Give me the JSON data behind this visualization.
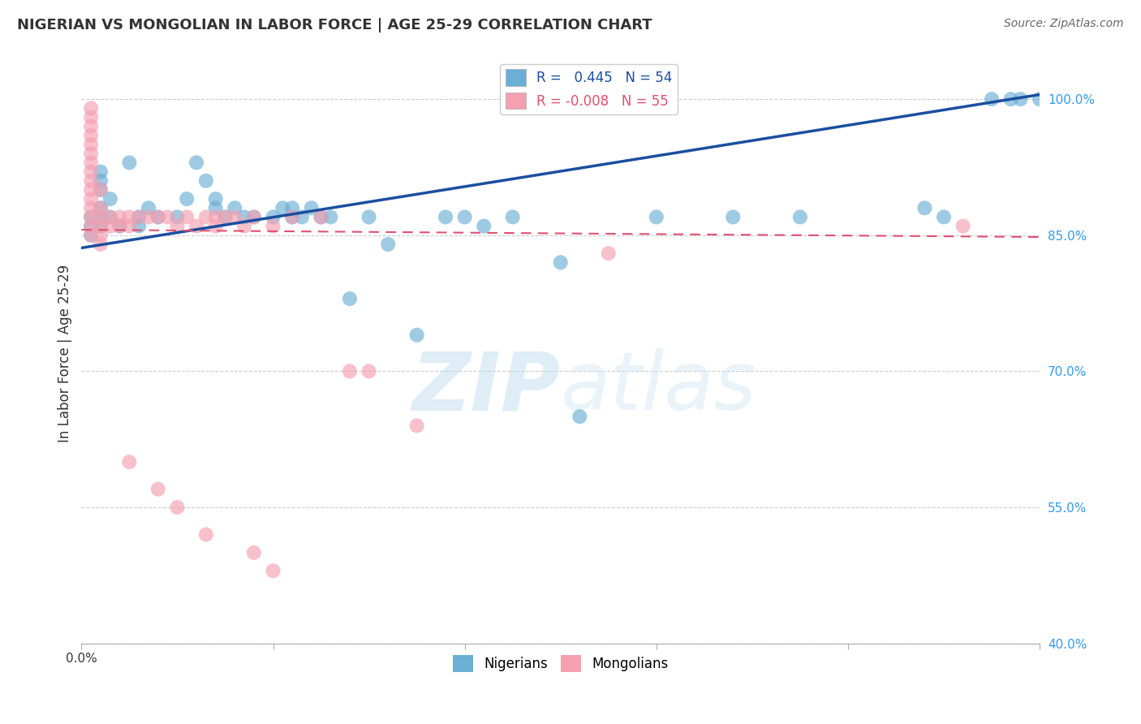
{
  "title": "NIGERIAN VS MONGOLIAN IN LABOR FORCE | AGE 25-29 CORRELATION CHART",
  "source": "Source: ZipAtlas.com",
  "ylabel": "In Labor Force | Age 25-29",
  "xlabel": "",
  "xlim": [
    0.0,
    1.0
  ],
  "ylim": [
    0.4,
    1.04
  ],
  "yticks": [
    0.4,
    0.55,
    0.7,
    0.85,
    1.0
  ],
  "ytick_labels": [
    "40.0%",
    "55.0%",
    "70.0%",
    "85.0%",
    "100.0%"
  ],
  "xticks": [
    0.0,
    0.2,
    0.4,
    0.6,
    0.8,
    1.0
  ],
  "xtick_labels": [
    "0.0%",
    "",
    "",
    "",
    "",
    ""
  ],
  "blue_label": "Nigerians",
  "pink_label": "Mongolians",
  "blue_R": "0.445",
  "blue_N": "54",
  "pink_R": "-0.008",
  "pink_N": "55",
  "blue_color": "#6baed6",
  "pink_color": "#f4a0b0",
  "blue_line_color": "#1a4fa0",
  "pink_line_color": "#e05070",
  "grid_color": "#cccccc",
  "watermark_zip": "ZIP",
  "watermark_atlas": "atlas",
  "blue_scatter_x": [
    0.01,
    0.01,
    0.01,
    0.02,
    0.02,
    0.02,
    0.02,
    0.02,
    0.02,
    0.03,
    0.03,
    0.04,
    0.05,
    0.06,
    0.06,
    0.07,
    0.08,
    0.1,
    0.11,
    0.12,
    0.13,
    0.14,
    0.14,
    0.15,
    0.16,
    0.17,
    0.18,
    0.2,
    0.21,
    0.22,
    0.22,
    0.23,
    0.24,
    0.25,
    0.26,
    0.28,
    0.3,
    0.32,
    0.35,
    0.38,
    0.4,
    0.42,
    0.45,
    0.5,
    0.52,
    0.6,
    0.68,
    0.75,
    0.88,
    0.9,
    0.95,
    0.97,
    0.98,
    1.0
  ],
  "blue_scatter_y": [
    0.87,
    0.86,
    0.85,
    0.92,
    0.91,
    0.9,
    0.88,
    0.87,
    0.86,
    0.89,
    0.87,
    0.86,
    0.93,
    0.87,
    0.86,
    0.88,
    0.87,
    0.87,
    0.89,
    0.93,
    0.91,
    0.89,
    0.88,
    0.87,
    0.88,
    0.87,
    0.87,
    0.87,
    0.88,
    0.88,
    0.87,
    0.87,
    0.88,
    0.87,
    0.87,
    0.78,
    0.87,
    0.84,
    0.74,
    0.87,
    0.87,
    0.86,
    0.87,
    0.82,
    0.65,
    0.87,
    0.87,
    0.87,
    0.88,
    0.87,
    1.0,
    1.0,
    1.0,
    1.0
  ],
  "pink_scatter_x": [
    0.01,
    0.01,
    0.01,
    0.01,
    0.01,
    0.01,
    0.01,
    0.01,
    0.01,
    0.01,
    0.01,
    0.01,
    0.01,
    0.01,
    0.01,
    0.02,
    0.02,
    0.02,
    0.02,
    0.02,
    0.02,
    0.03,
    0.03,
    0.04,
    0.04,
    0.05,
    0.05,
    0.06,
    0.07,
    0.08,
    0.09,
    0.1,
    0.11,
    0.12,
    0.13,
    0.14,
    0.14,
    0.15,
    0.16,
    0.17,
    0.18,
    0.2,
    0.22,
    0.25,
    0.28,
    0.3,
    0.35,
    0.55,
    0.92,
    0.05,
    0.08,
    0.1,
    0.13,
    0.18,
    0.2
  ],
  "pink_scatter_y": [
    0.99,
    0.98,
    0.97,
    0.96,
    0.95,
    0.94,
    0.93,
    0.92,
    0.91,
    0.9,
    0.89,
    0.88,
    0.87,
    0.86,
    0.85,
    0.9,
    0.88,
    0.87,
    0.86,
    0.85,
    0.84,
    0.87,
    0.86,
    0.87,
    0.86,
    0.87,
    0.86,
    0.87,
    0.87,
    0.87,
    0.87,
    0.86,
    0.87,
    0.86,
    0.87,
    0.87,
    0.86,
    0.87,
    0.87,
    0.86,
    0.87,
    0.86,
    0.87,
    0.87,
    0.7,
    0.7,
    0.64,
    0.83,
    0.86,
    0.6,
    0.57,
    0.55,
    0.52,
    0.5,
    0.48
  ],
  "blue_line_x": [
    0.0,
    1.0
  ],
  "blue_line_y_start": 0.836,
  "blue_line_y_end": 1.005,
  "pink_line_x": [
    0.0,
    1.0
  ],
  "pink_line_y_start": 0.856,
  "pink_line_y_end": 0.848
}
